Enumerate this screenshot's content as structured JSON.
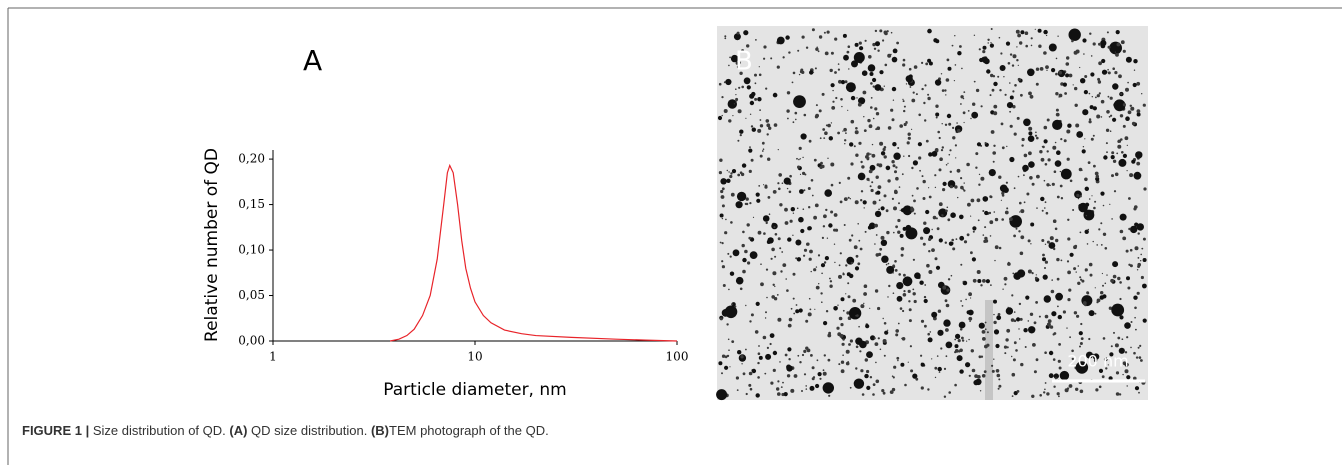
{
  "chart_data": {
    "type": "line",
    "panel_label": "A",
    "x_label": "Particle diameter, nm",
    "y_label": "Relative number of QD",
    "x": [
      3.8,
      4.2,
      4.6,
      5.0,
      5.5,
      6.0,
      6.5,
      7.0,
      7.3,
      7.5,
      7.8,
      8.2,
      8.6,
      9.0,
      9.5,
      10,
      11,
      12,
      14,
      17,
      20,
      30,
      50,
      70,
      100
    ],
    "values": [
      0,
      0.002,
      0.006,
      0.013,
      0.028,
      0.05,
      0.09,
      0.15,
      0.185,
      0.193,
      0.185,
      0.15,
      0.11,
      0.08,
      0.058,
      0.043,
      0.028,
      0.02,
      0.012,
      0.008,
      0.006,
      0.004,
      0.002,
      0.001,
      0
    ],
    "color": "#e8242a",
    "xscale": "log",
    "xlim": [
      1,
      100
    ],
    "xticks": [
      1,
      10,
      100
    ],
    "ylim": [
      0,
      0.21
    ],
    "yticks": [
      {
        "value": 0,
        "label": "0,00"
      },
      {
        "value": 0.05,
        "label": "0,05"
      },
      {
        "value": 0.1,
        "label": "0,10"
      },
      {
        "value": 0.15,
        "label": "0,15"
      },
      {
        "value": 0.2,
        "label": "0,20"
      }
    ],
    "grid": false
  },
  "panel_b": {
    "label": "B",
    "scale_bar": "200 nm"
  },
  "caption": {
    "figure": "FIGURE 1 |",
    "text1": " Size distribution of QD. ",
    "a": "(A)",
    "text2": " QD size distribution. ",
    "b": "(B)",
    "text3": "TEM photograph of the QD."
  }
}
